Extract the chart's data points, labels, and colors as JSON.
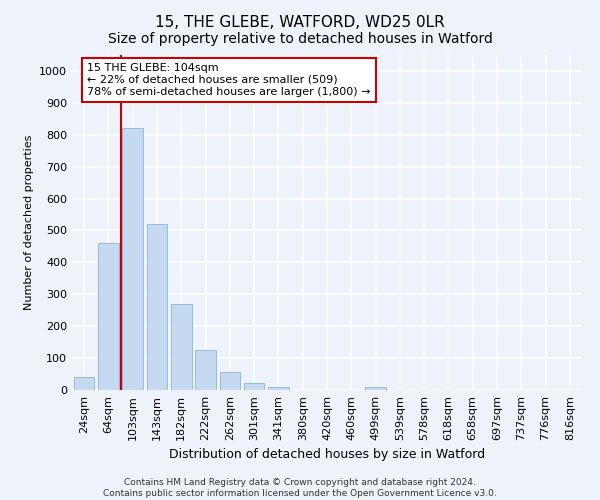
{
  "title": "15, THE GLEBE, WATFORD, WD25 0LR",
  "subtitle": "Size of property relative to detached houses in Watford",
  "xlabel": "Distribution of detached houses by size in Watford",
  "ylabel": "Number of detached properties",
  "footer_line1": "Contains HM Land Registry data © Crown copyright and database right 2024.",
  "footer_line2": "Contains public sector information licensed under the Open Government Licence v3.0.",
  "categories": [
    "24sqm",
    "64sqm",
    "103sqm",
    "143sqm",
    "182sqm",
    "222sqm",
    "262sqm",
    "301sqm",
    "341sqm",
    "380sqm",
    "420sqm",
    "460sqm",
    "499sqm",
    "539sqm",
    "578sqm",
    "618sqm",
    "658sqm",
    "697sqm",
    "737sqm",
    "776sqm",
    "816sqm"
  ],
  "values": [
    40,
    460,
    820,
    520,
    270,
    125,
    55,
    22,
    10,
    0,
    0,
    0,
    8,
    0,
    0,
    0,
    0,
    0,
    0,
    0,
    0
  ],
  "bar_color": "#c5d9f0",
  "bar_edge_color": "#8cb4d8",
  "vline_index": 2,
  "vline_color": "#cc0000",
  "annotation_text": "15 THE GLEBE: 104sqm\n← 22% of detached houses are smaller (509)\n78% of semi-detached houses are larger (1,800) →",
  "annotation_box_facecolor": "#ffffff",
  "annotation_box_edgecolor": "#cc0000",
  "ylim": [
    0,
    1050
  ],
  "yticks": [
    0,
    100,
    200,
    300,
    400,
    500,
    600,
    700,
    800,
    900,
    1000
  ],
  "background_color": "#eef2fa",
  "grid_color": "#ffffff",
  "title_fontsize": 11,
  "subtitle_fontsize": 10,
  "tick_fontsize": 8,
  "ylabel_fontsize": 8,
  "xlabel_fontsize": 9
}
